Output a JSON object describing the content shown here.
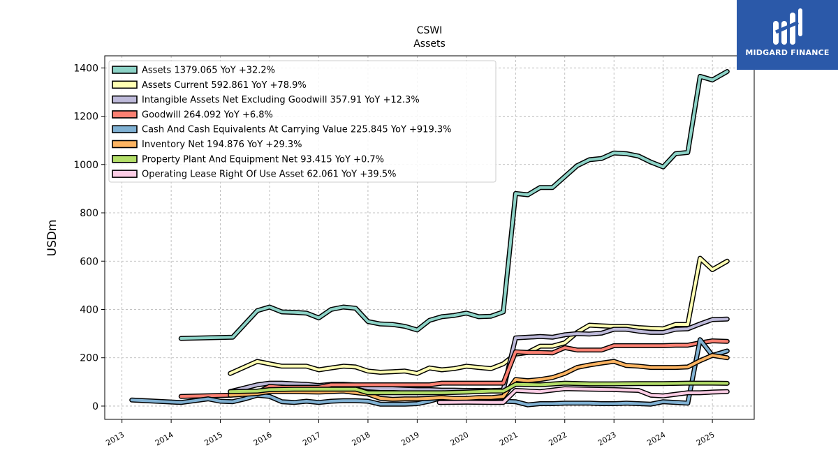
{
  "brand": {
    "name": "MIDGARD FINANCE",
    "logo_icon": "midgard-logo-icon",
    "color": "#2b59a9"
  },
  "chart_data": {
    "type": "line",
    "title": "CSWI",
    "subtitle": "Assets",
    "ylabel": "USDm",
    "xlabel": "",
    "xlim": [
      2012.65,
      2025.85
    ],
    "ylim": [
      -55,
      1450
    ],
    "xticks": [
      "2013",
      "2014",
      "2015",
      "2016",
      "2017",
      "2018",
      "2019",
      "2020",
      "2021",
      "2022",
      "2023",
      "2024",
      "2025"
    ],
    "yticks": [
      0,
      200,
      400,
      600,
      800,
      1000,
      1200,
      1400
    ],
    "grid": true,
    "legend_position": "top-left",
    "series": [
      {
        "name": "Assets",
        "legend": "Assets  1379.065 YoY +32.2%",
        "color": "#8dd3c7",
        "x": [
          2014.2,
          2015.25,
          2015.75,
          2016.0,
          2016.25,
          2016.5,
          2016.75,
          2017.0,
          2017.25,
          2017.5,
          2017.75,
          2018.0,
          2018.25,
          2018.5,
          2018.75,
          2019.0,
          2019.25,
          2019.5,
          2019.75,
          2020.0,
          2020.25,
          2020.5,
          2020.75,
          2021.0,
          2021.25,
          2021.5,
          2021.75,
          2022.0,
          2022.25,
          2022.5,
          2022.75,
          2023.0,
          2023.25,
          2023.5,
          2023.75,
          2024.0,
          2024.25,
          2024.5,
          2024.75,
          2025.0,
          2025.3
        ],
        "y": [
          280,
          285,
          395,
          410,
          390,
          388,
          385,
          365,
          400,
          410,
          405,
          350,
          340,
          338,
          330,
          315,
          355,
          370,
          375,
          385,
          370,
          372,
          390,
          880,
          875,
          905,
          905,
          950,
          995,
          1020,
          1025,
          1048,
          1045,
          1035,
          1010,
          990,
          1045,
          1050,
          1365,
          1350,
          1385
        ]
      },
      {
        "name": "Assets Current",
        "legend": "Assets Current  592.861 YoY +78.9%",
        "color": "#ffffb3",
        "x": [
          2015.2,
          2015.75,
          2016.0,
          2016.25,
          2016.5,
          2016.75,
          2017.0,
          2017.25,
          2017.5,
          2017.75,
          2018.0,
          2018.25,
          2018.5,
          2018.75,
          2019.0,
          2019.25,
          2019.5,
          2019.75,
          2020.0,
          2020.25,
          2020.5,
          2020.75,
          2021.0,
          2021.25,
          2021.5,
          2021.75,
          2022.0,
          2022.25,
          2022.5,
          2022.75,
          2023.0,
          2023.25,
          2023.5,
          2023.75,
          2024.0,
          2024.25,
          2024.5,
          2024.75,
          2025.0,
          2025.3
        ],
        "y": [
          135,
          185,
          175,
          165,
          165,
          165,
          150,
          158,
          165,
          162,
          145,
          140,
          142,
          145,
          135,
          158,
          150,
          155,
          165,
          160,
          155,
          175,
          215,
          222,
          248,
          248,
          262,
          305,
          335,
          332,
          330,
          330,
          325,
          322,
          320,
          338,
          338,
          612,
          565,
          600
        ]
      },
      {
        "name": "Intangible Assets Net Excluding Goodwill",
        "legend": "Intangible Assets Net Excluding Goodwill  357.91 YoY +12.3%",
        "color": "#bebada",
        "x": [
          2015.2,
          2015.75,
          2016.0,
          2016.25,
          2016.5,
          2016.75,
          2017.0,
          2017.25,
          2017.5,
          2017.75,
          2018.0,
          2018.25,
          2018.5,
          2018.75,
          2019.0,
          2019.25,
          2019.5,
          2019.75,
          2020.0,
          2020.25,
          2020.5,
          2020.75,
          2021.0,
          2021.25,
          2021.5,
          2021.75,
          2022.0,
          2022.25,
          2022.5,
          2022.75,
          2023.0,
          2023.25,
          2023.5,
          2023.75,
          2024.0,
          2024.25,
          2024.5,
          2024.75,
          2025.0,
          2025.3
        ],
        "y": [
          60,
          88,
          95,
          95,
          92,
          90,
          85,
          90,
          90,
          88,
          75,
          72,
          72,
          70,
          68,
          68,
          66,
          66,
          65,
          65,
          64,
          66,
          282,
          285,
          288,
          285,
          295,
          300,
          298,
          302,
          318,
          318,
          310,
          305,
          305,
          318,
          320,
          340,
          358,
          360
        ]
      },
      {
        "name": "Goodwill",
        "legend": "Goodwill  264.092 YoY +6.8%",
        "color": "#fb8072",
        "x": [
          2014.2,
          2015.2,
          2015.75,
          2016.0,
          2016.25,
          2016.5,
          2016.75,
          2017.0,
          2017.25,
          2017.5,
          2017.75,
          2018.0,
          2018.5,
          2019.0,
          2019.25,
          2019.5,
          2020.0,
          2020.5,
          2020.75,
          2021.0,
          2021.25,
          2021.5,
          2021.75,
          2022.0,
          2022.25,
          2022.5,
          2022.75,
          2023.0,
          2023.5,
          2024.0,
          2024.25,
          2024.5,
          2024.75,
          2025.0,
          2025.3
        ],
        "y": [
          40,
          45,
          55,
          82,
          78,
          78,
          78,
          78,
          88,
          88,
          88,
          88,
          88,
          88,
          88,
          95,
          95,
          95,
          95,
          225,
          222,
          222,
          220,
          242,
          232,
          232,
          232,
          250,
          250,
          250,
          252,
          252,
          262,
          270,
          268
        ]
      },
      {
        "name": "Cash And Cash Equivalents At Carrying Value",
        "legend": "Cash And Cash Equivalents At Carrying Value  225.845 YoY +919.3%",
        "color": "#80b1d3",
        "x": [
          2013.2,
          2014.2,
          2014.75,
          2015.0,
          2015.25,
          2015.5,
          2015.75,
          2016.0,
          2016.25,
          2016.5,
          2016.75,
          2017.0,
          2017.25,
          2017.5,
          2017.75,
          2018.0,
          2018.25,
          2018.5,
          2018.75,
          2019.0,
          2019.25,
          2019.5,
          2019.75,
          2020.0,
          2020.25,
          2020.5,
          2020.75,
          2021.0,
          2021.25,
          2021.5,
          2021.75,
          2022.0,
          2022.25,
          2022.5,
          2022.75,
          2023.0,
          2023.25,
          2023.5,
          2023.75,
          2024.0,
          2024.25,
          2024.5,
          2024.75,
          2025.0,
          2025.3
        ],
        "y": [
          25,
          15,
          30,
          20,
          18,
          30,
          45,
          40,
          18,
          15,
          20,
          15,
          20,
          22,
          22,
          20,
          8,
          8,
          8,
          10,
          20,
          35,
          30,
          25,
          18,
          18,
          20,
          18,
          5,
          10,
          10,
          12,
          12,
          12,
          10,
          10,
          12,
          10,
          8,
          18,
          15,
          12,
          275,
          210,
          228
        ]
      },
      {
        "name": "Inventory Net",
        "legend": "Inventory Net  194.876 YoY +29.3%",
        "color": "#fdb462",
        "x": [
          2015.2,
          2015.75,
          2016.0,
          2016.5,
          2017.0,
          2017.5,
          2018.0,
          2018.25,
          2018.5,
          2018.75,
          2019.0,
          2019.25,
          2019.5,
          2019.75,
          2020.0,
          2020.25,
          2020.5,
          2020.75,
          2021.0,
          2021.25,
          2021.5,
          2021.75,
          2022.0,
          2022.25,
          2022.5,
          2022.75,
          2023.0,
          2023.25,
          2023.5,
          2023.75,
          2024.0,
          2024.25,
          2024.5,
          2024.75,
          2025.0,
          2025.3
        ],
        "y": [
          45,
          52,
          60,
          60,
          58,
          62,
          50,
          32,
          28,
          30,
          30,
          32,
          35,
          32,
          32,
          35,
          35,
          40,
          110,
          105,
          110,
          118,
          135,
          160,
          170,
          178,
          185,
          168,
          165,
          160,
          160,
          160,
          162,
          188,
          210,
          200
        ]
      },
      {
        "name": "Property Plant And Equipment Net",
        "legend": "Property Plant And Equipment Net  93.415 YoY +0.7%",
        "color": "#b3de69",
        "x": [
          2015.2,
          2015.75,
          2016.0,
          2016.5,
          2017.0,
          2017.5,
          2017.75,
          2018.0,
          2018.5,
          2019.0,
          2019.5,
          2020.0,
          2020.5,
          2020.75,
          2021.0,
          2021.5,
          2022.0,
          2022.5,
          2023.0,
          2023.5,
          2024.0,
          2024.5,
          2025.0,
          2025.3
        ],
        "y": [
          60,
          62,
          68,
          70,
          70,
          70,
          70,
          55,
          55,
          55,
          55,
          58,
          62,
          62,
          90,
          88,
          95,
          92,
          92,
          93,
          93,
          95,
          95,
          94
        ]
      },
      {
        "name": "Operating Lease Right Of Use Asset",
        "legend": "Operating Lease Right Of Use Asset  62.061 YoY +39.5%",
        "color": "#fccde5",
        "x": [
          2019.45,
          2020.0,
          2020.5,
          2020.75,
          2021.0,
          2021.5,
          2022.0,
          2022.5,
          2023.0,
          2023.5,
          2023.75,
          2024.0,
          2024.5,
          2024.75,
          2025.0,
          2025.3
        ],
        "y": [
          15,
          16,
          15,
          15,
          65,
          60,
          72,
          70,
          68,
          65,
          45,
          42,
          55,
          55,
          58,
          60
        ]
      }
    ]
  }
}
